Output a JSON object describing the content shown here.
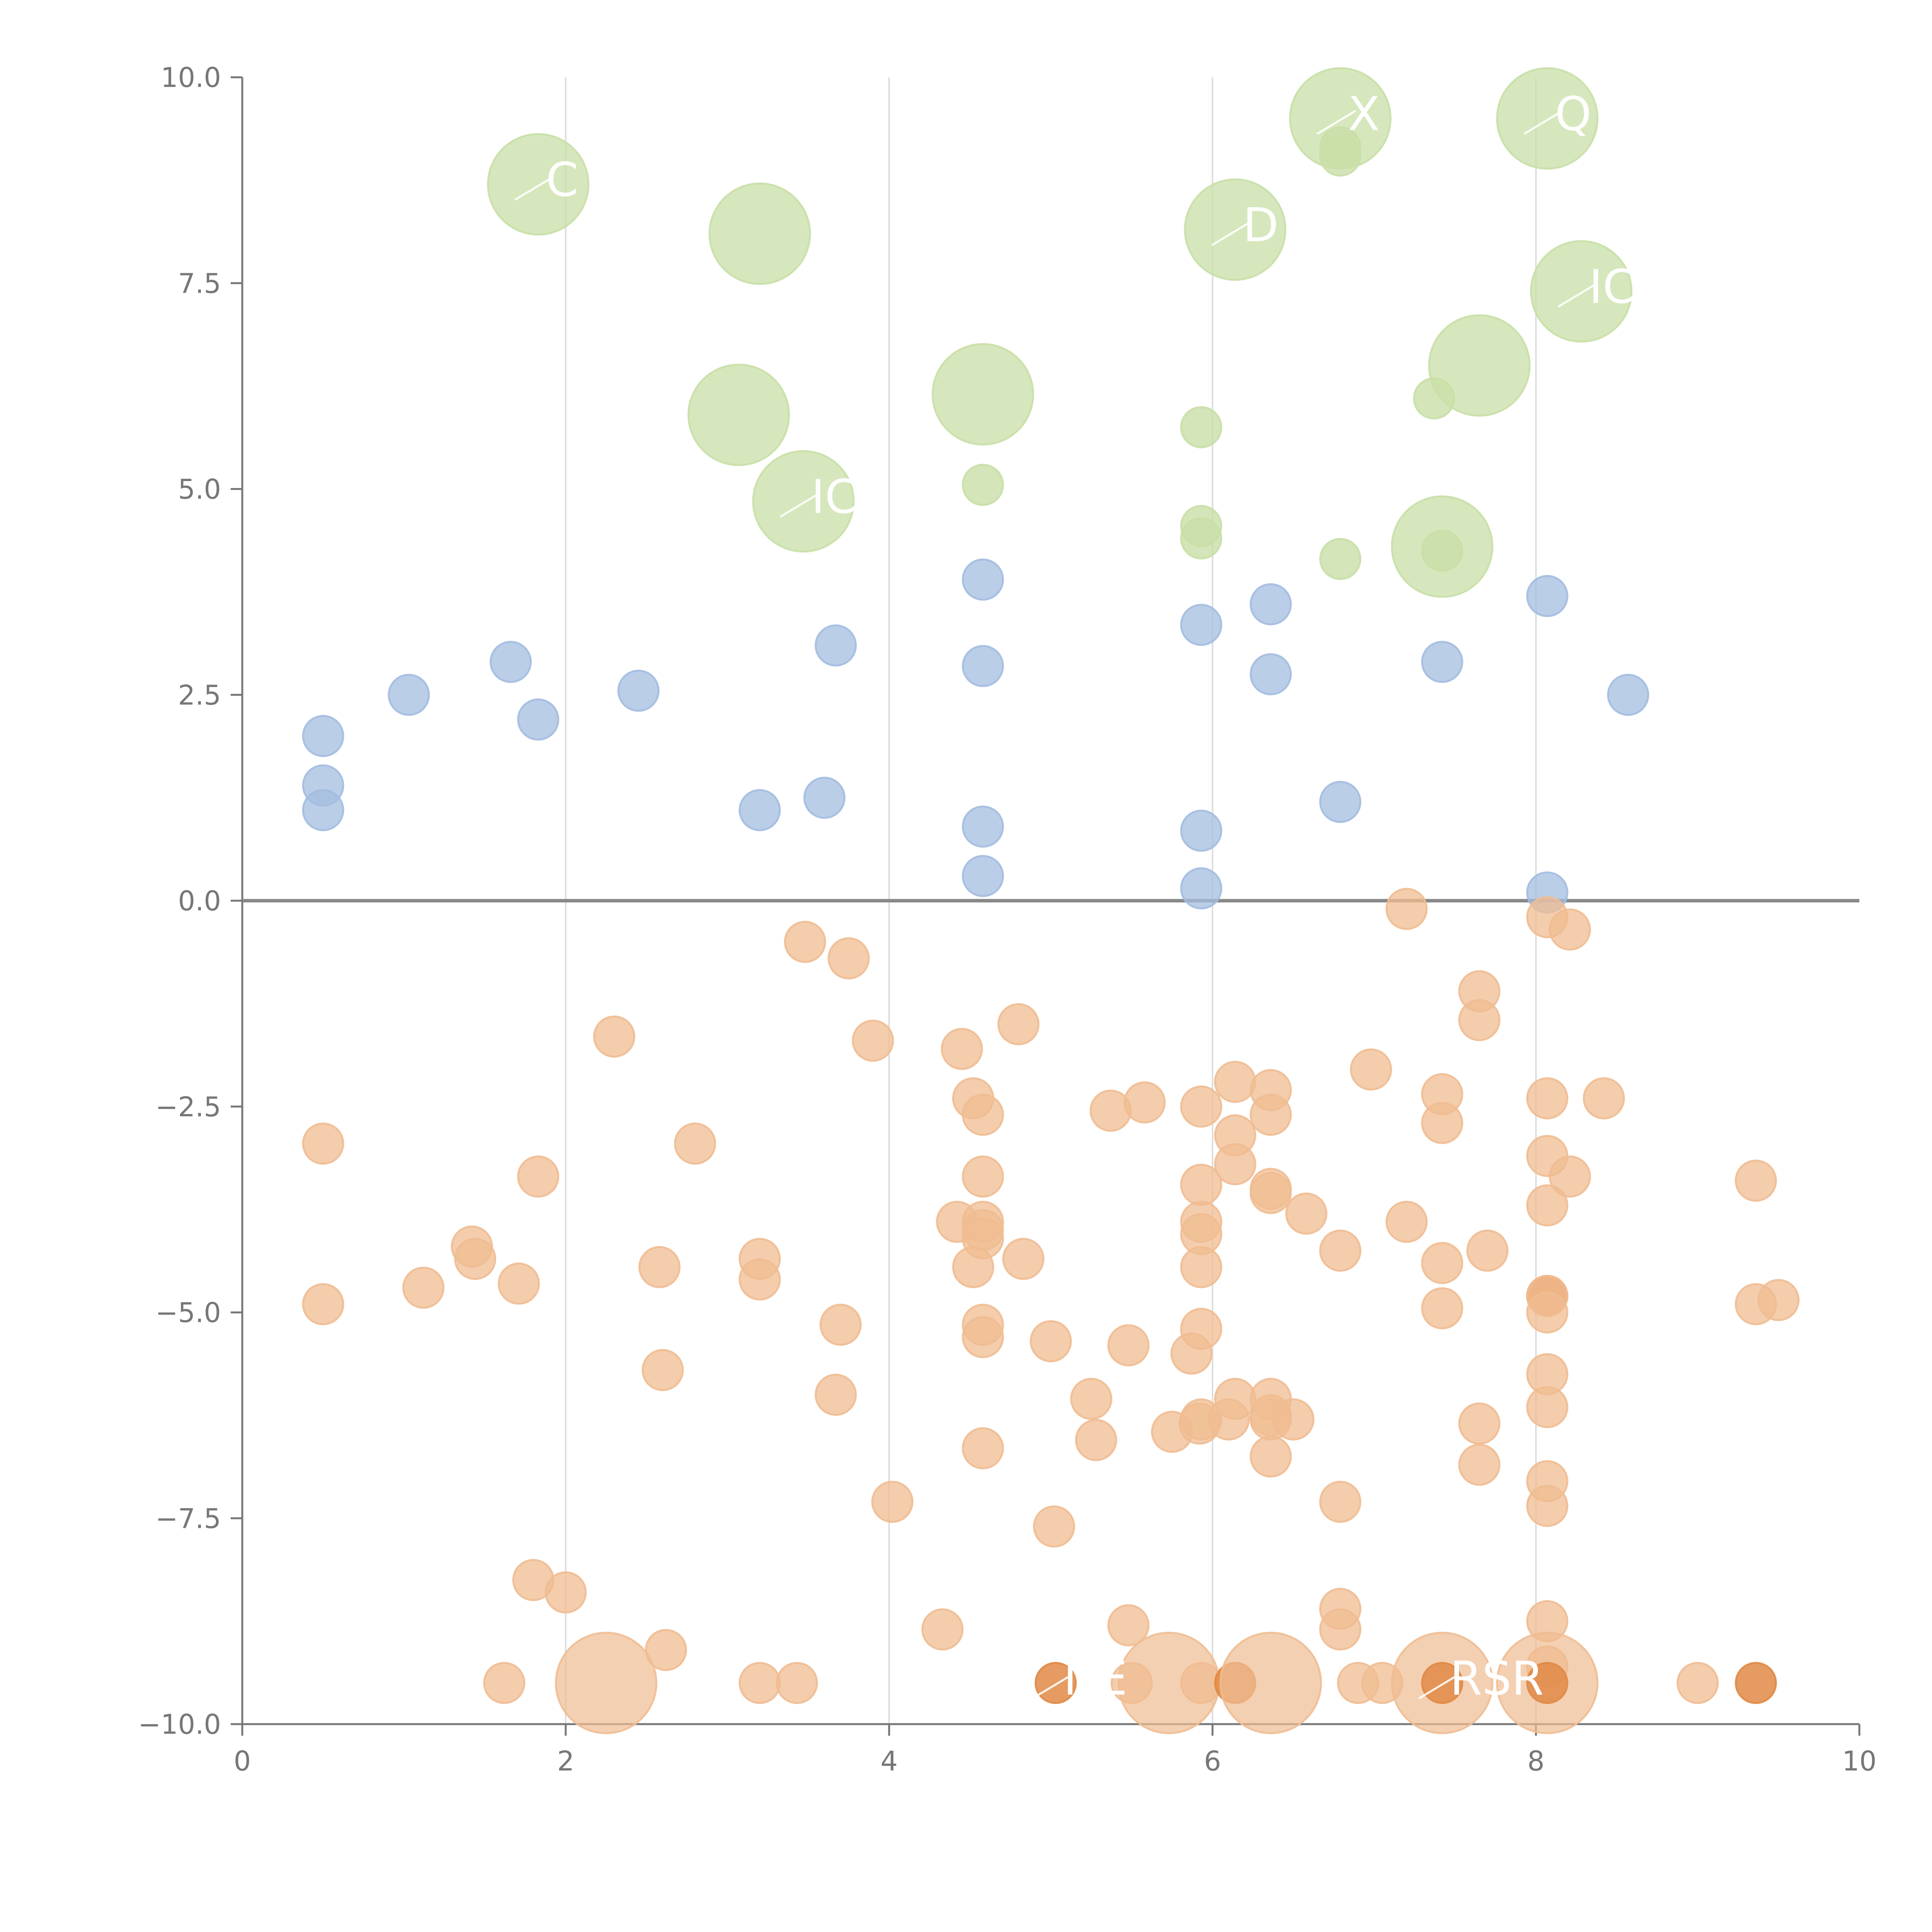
{
  "chart_data": {
    "type": "scatter",
    "title": "",
    "xlabel": "",
    "ylabel": "",
    "xlim": [
      0,
      10
    ],
    "ylim": [
      -10,
      10
    ],
    "x_ticks": [
      0,
      2,
      4,
      6,
      8,
      10
    ],
    "x_tick_labels": [
      "0",
      "2",
      "4",
      "6",
      "8",
      "10"
    ],
    "y_ticks": [
      10,
      7.5,
      5,
      2.5,
      0,
      -2.5,
      -5,
      -7.5,
      -10
    ],
    "y_tick_labels": [
      "10.0",
      "7.5",
      "5.0",
      "2.5",
      "0.0",
      "−2.5",
      "−5.0",
      "−7.5",
      "−10.0"
    ],
    "grid": "vertical",
    "zero_line": true,
    "colors": {
      "positive_small": "#a3bde0",
      "positive_large": "#c9dfa7",
      "negative": "#f0bc92",
      "negative_dense": "#e08a46",
      "axis": "#777777",
      "grid": "#dddddd",
      "zero_line": "#888888",
      "label": "#ffffff"
    },
    "series": [
      {
        "name": "blue",
        "color": "#a3bde0",
        "points": [
          [
            0.5,
            2.0
          ],
          [
            0.5,
            1.4
          ],
          [
            0.5,
            1.1
          ],
          [
            1.03,
            2.5
          ],
          [
            1.66,
            2.9
          ],
          [
            1.83,
            2.2
          ],
          [
            2.45,
            2.55
          ],
          [
            3.2,
            1.1
          ],
          [
            3.6,
            1.25
          ],
          [
            3.67,
            3.1
          ],
          [
            4.58,
            3.9
          ],
          [
            4.58,
            2.85
          ],
          [
            4.58,
            0.9
          ],
          [
            4.58,
            0.3
          ],
          [
            5.93,
            3.35
          ],
          [
            5.93,
            0.85
          ],
          [
            5.93,
            0.15
          ],
          [
            6.36,
            3.6
          ],
          [
            6.36,
            2.75
          ],
          [
            6.79,
            1.2
          ],
          [
            7.42,
            2.9
          ],
          [
            8.07,
            3.7
          ],
          [
            8.07,
            0.1
          ],
          [
            8.57,
            2.5
          ]
        ]
      },
      {
        "name": "green",
        "color": "#c9dfa7",
        "points": [
          [
            1.83,
            8.7,
            1
          ],
          [
            3.2,
            8.1,
            1
          ],
          [
            3.07,
            5.9,
            1
          ],
          [
            3.47,
            4.85,
            1
          ],
          [
            4.58,
            6.15,
            1
          ],
          [
            4.58,
            5.05,
            0
          ],
          [
            5.93,
            5.75,
            0
          ],
          [
            5.93,
            4.55,
            0
          ],
          [
            5.93,
            4.4,
            0
          ],
          [
            6.14,
            8.15,
            1
          ],
          [
            6.79,
            9.5,
            1
          ],
          [
            6.79,
            9.15,
            0
          ],
          [
            6.79,
            9.05,
            0
          ],
          [
            6.79,
            4.15,
            0
          ],
          [
            7.37,
            6.1,
            0
          ],
          [
            7.42,
            4.3,
            1
          ],
          [
            7.42,
            4.25,
            0
          ],
          [
            7.65,
            6.5,
            1
          ],
          [
            8.07,
            9.5,
            1
          ],
          [
            8.28,
            7.4,
            1
          ]
        ]
      },
      {
        "name": "orange",
        "color": "#f0bc92",
        "points": [
          [
            0.5,
            -2.95,
            0
          ],
          [
            0.5,
            -4.9,
            0
          ],
          [
            1.12,
            -4.7,
            0
          ],
          [
            1.42,
            -4.2,
            0
          ],
          [
            1.44,
            -4.35,
            0
          ],
          [
            1.71,
            -4.65,
            0
          ],
          [
            1.83,
            -3.35,
            0
          ],
          [
            1.8,
            -8.25,
            0
          ],
          [
            2.0,
            -8.4,
            0
          ],
          [
            1.62,
            -9.5,
            0
          ],
          [
            2.25,
            -9.5,
            1
          ],
          [
            2.3,
            -1.65,
            0
          ],
          [
            2.58,
            -4.45,
            0
          ],
          [
            2.6,
            -5.7,
            0
          ],
          [
            2.62,
            -9.1,
            0
          ],
          [
            2.8,
            -2.95,
            0
          ],
          [
            3.2,
            -4.35,
            0
          ],
          [
            3.2,
            -4.6,
            0
          ],
          [
            3.2,
            -9.5,
            0
          ],
          [
            3.43,
            -9.5,
            0
          ],
          [
            3.48,
            -0.5,
            0
          ],
          [
            3.67,
            -6.0,
            0
          ],
          [
            3.7,
            -5.15,
            0
          ],
          [
            3.75,
            -0.7,
            0
          ],
          [
            3.9,
            -1.7,
            0
          ],
          [
            4.02,
            -7.3,
            0
          ],
          [
            4.33,
            -8.85,
            0
          ],
          [
            4.42,
            -3.9,
            0
          ],
          [
            4.45,
            -1.8,
            0
          ],
          [
            4.52,
            -2.4,
            0
          ],
          [
            4.52,
            -4.45,
            0
          ],
          [
            4.58,
            -2.6,
            0
          ],
          [
            4.58,
            -3.35,
            0
          ],
          [
            4.58,
            -3.9,
            0
          ],
          [
            4.58,
            -4.0,
            0
          ],
          [
            4.58,
            -4.1,
            0
          ],
          [
            4.58,
            -5.15,
            0
          ],
          [
            4.58,
            -5.3,
            0
          ],
          [
            4.58,
            -6.65,
            0
          ],
          [
            4.8,
            -1.5,
            0
          ],
          [
            4.83,
            -4.35,
            0
          ],
          [
            5.0,
            -5.35,
            0
          ],
          [
            5.02,
            -7.6,
            0
          ],
          [
            5.03,
            -9.5,
            2
          ],
          [
            5.25,
            -6.05,
            0
          ],
          [
            5.28,
            -6.55,
            0
          ],
          [
            5.37,
            -2.55,
            0
          ],
          [
            5.48,
            -8.8,
            0
          ],
          [
            5.48,
            -5.4,
            0
          ],
          [
            5.5,
            -9.5,
            0
          ],
          [
            5.58,
            -2.45,
            0
          ],
          [
            5.73,
            -9.5,
            1
          ],
          [
            5.75,
            -6.45,
            0
          ],
          [
            5.87,
            -5.5,
            0
          ],
          [
            5.92,
            -6.35,
            0
          ],
          [
            5.93,
            -2.5,
            0
          ],
          [
            5.93,
            -3.45,
            0
          ],
          [
            5.93,
            -3.9,
            0
          ],
          [
            5.93,
            -4.05,
            0
          ],
          [
            5.93,
            -4.45,
            0
          ],
          [
            5.93,
            -5.2,
            0
          ],
          [
            5.93,
            -6.3,
            0
          ],
          [
            5.93,
            -9.5,
            0
          ],
          [
            6.1,
            -6.3,
            0
          ],
          [
            6.14,
            -2.2,
            0
          ],
          [
            6.14,
            -2.85,
            0
          ],
          [
            6.14,
            -3.2,
            0
          ],
          [
            6.14,
            -6.05,
            0
          ],
          [
            6.14,
            -9.5,
            2
          ],
          [
            6.36,
            -2.3,
            0
          ],
          [
            6.36,
            -2.6,
            0
          ],
          [
            6.36,
            -3.5,
            0
          ],
          [
            6.36,
            -3.55,
            0
          ],
          [
            6.36,
            -6.05,
            0
          ],
          [
            6.36,
            -6.25,
            0
          ],
          [
            6.36,
            -6.3,
            0
          ],
          [
            6.36,
            -6.75,
            0
          ],
          [
            6.36,
            -9.5,
            1
          ],
          [
            6.5,
            -6.3,
            0
          ],
          [
            6.58,
            -3.8,
            0
          ],
          [
            6.79,
            -4.25,
            0
          ],
          [
            6.79,
            -7.3,
            0
          ],
          [
            6.79,
            -8.6,
            0
          ],
          [
            6.79,
            -8.85,
            0
          ],
          [
            6.98,
            -2.05,
            0
          ],
          [
            6.9,
            -9.5,
            0
          ],
          [
            7.05,
            -9.5,
            0
          ],
          [
            7.2,
            -0.1,
            0
          ],
          [
            7.2,
            -3.9,
            0
          ],
          [
            7.42,
            -2.35,
            0
          ],
          [
            7.42,
            -2.7,
            0
          ],
          [
            7.42,
            -4.4,
            0
          ],
          [
            7.42,
            -4.95,
            0
          ],
          [
            7.42,
            -9.5,
            1
          ],
          [
            7.42,
            -9.5,
            2
          ],
          [
            7.65,
            -1.1,
            0
          ],
          [
            7.65,
            -1.45,
            0
          ],
          [
            7.65,
            -6.35,
            0
          ],
          [
            7.65,
            -6.85,
            0
          ],
          [
            7.7,
            -4.25,
            0
          ],
          [
            8.07,
            -0.2,
            0
          ],
          [
            8.07,
            -2.4,
            0
          ],
          [
            8.07,
            -3.1,
            0
          ],
          [
            8.07,
            -3.7,
            0
          ],
          [
            8.07,
            -4.8,
            2
          ],
          [
            8.07,
            -4.8,
            0
          ],
          [
            8.07,
            -5.0,
            0
          ],
          [
            8.07,
            -5.75,
            0
          ],
          [
            8.07,
            -6.15,
            0
          ],
          [
            8.07,
            -7.05,
            0
          ],
          [
            8.07,
            -7.35,
            0
          ],
          [
            8.07,
            -8.75,
            0
          ],
          [
            8.07,
            -9.3,
            0
          ],
          [
            8.07,
            -9.5,
            1
          ],
          [
            8.07,
            -9.5,
            2
          ],
          [
            8.21,
            -0.35,
            0
          ],
          [
            8.21,
            -3.35,
            0
          ],
          [
            8.42,
            -2.4,
            0
          ],
          [
            9.0,
            -9.5,
            0
          ],
          [
            9.36,
            -3.4,
            0
          ],
          [
            9.36,
            -4.9,
            0
          ],
          [
            9.36,
            -9.5,
            2
          ],
          [
            9.5,
            -4.85,
            0
          ]
        ]
      }
    ],
    "annotations": [
      {
        "text": "IC",
        "x": 3.47,
        "y": 4.85
      },
      {
        "text": "IC",
        "x": 8.28,
        "y": 7.4
      },
      {
        "text": "X",
        "x": 6.79,
        "y": 9.5
      },
      {
        "text": "Q",
        "x": 8.07,
        "y": 9.5
      },
      {
        "text": "D",
        "x": 6.14,
        "y": 8.15
      },
      {
        "text": "C",
        "x": 1.83,
        "y": 8.7
      },
      {
        "text": "NE",
        "x": 5.03,
        "y": -9.5
      },
      {
        "text": "RSR",
        "x": 7.42,
        "y": -9.5
      }
    ]
  }
}
